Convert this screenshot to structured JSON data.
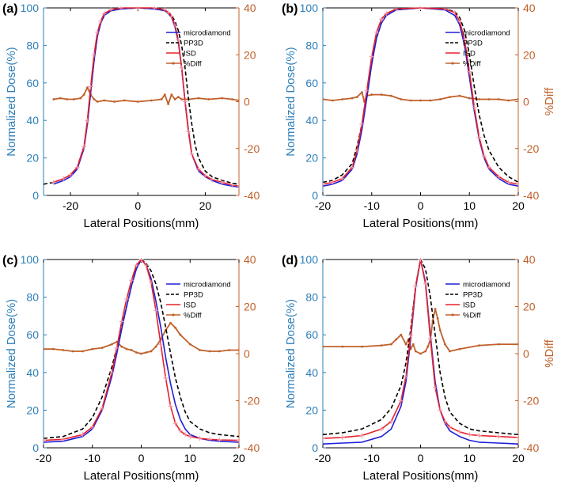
{
  "colors": {
    "left_axis": "#2E7FB8",
    "right_axis": "#C0602A",
    "microdiamond": "#1F1FD6",
    "pp3d": "#000000",
    "isd": "#E8202A",
    "diff": "#C0602A",
    "axis": "#000000"
  },
  "chart_data": [
    {
      "panel_label": "(a)",
      "type": "line",
      "xlabel": "Lateral Positions(mm)",
      "ylabel": "Normalized Dose(%)",
      "ylabel_right": "",
      "xlim": [
        -28,
        30
      ],
      "ylim": [
        0,
        100
      ],
      "ylim_right": [
        -40,
        40
      ],
      "xticks": [
        -20,
        0,
        20
      ],
      "yticks": [
        0,
        20,
        40,
        60,
        80,
        100
      ],
      "yticks_right": [
        -40,
        -20,
        0,
        20,
        40
      ],
      "legend": [
        "microdiamond",
        "PP3D",
        "ISD",
        "%Diff"
      ],
      "series": [
        {
          "name": "microdiamond",
          "axis": "left",
          "x": [
            -25,
            -22,
            -20,
            -18,
            -16,
            -15,
            -14,
            -13,
            -12,
            -11,
            -10,
            -8,
            -5,
            0,
            5,
            8,
            9,
            10,
            11,
            12,
            13,
            14,
            15,
            16,
            18,
            20,
            22,
            25,
            28,
            30
          ],
          "values": [
            6,
            8,
            10,
            14,
            25,
            38,
            55,
            72,
            85,
            92,
            96,
            98.5,
            99.5,
            100,
            99.5,
            98.5,
            97,
            95,
            90,
            82,
            68,
            50,
            35,
            22,
            13,
            10,
            8,
            6,
            5,
            4.5
          ]
        },
        {
          "name": "PP3D",
          "axis": "left",
          "x": [
            -28,
            -25,
            -22,
            -20,
            -18,
            -16,
            -15,
            -14,
            -13,
            -12,
            -11,
            -10,
            -8,
            -5,
            0,
            5,
            8,
            9,
            10,
            11,
            12,
            13,
            14,
            15,
            16,
            17,
            18,
            20,
            22,
            25,
            28,
            30
          ],
          "values": [
            6,
            7,
            9,
            11,
            15,
            26,
            38,
            55,
            72,
            85,
            92,
            96,
            98.5,
            99.5,
            100,
            99.5,
            98.5,
            97.5,
            96,
            93,
            88,
            80,
            68,
            52,
            38,
            27,
            20,
            13,
            10,
            8,
            6.5,
            6
          ]
        },
        {
          "name": "ISD",
          "axis": "left",
          "x": [
            -25,
            -22,
            -20,
            -18,
            -16,
            -15,
            -14,
            -13,
            -12,
            -11,
            -10,
            -8,
            -5,
            0,
            5,
            8,
            9,
            10,
            11,
            12,
            13,
            14,
            15,
            16,
            18,
            20,
            22,
            25,
            28,
            30
          ],
          "values": [
            7,
            9,
            11,
            15,
            26,
            40,
            58,
            75,
            87,
            93,
            97,
            99,
            100,
            100,
            100,
            99,
            97.5,
            95.5,
            91,
            83,
            68,
            50,
            34,
            22,
            14,
            10.5,
            8.5,
            7,
            5.5,
            5
          ]
        },
        {
          "name": "%Diff",
          "axis": "right",
          "x": [
            -25,
            -23,
            -21,
            -19,
            -17,
            -16,
            -15,
            -14,
            -13,
            -12,
            -10,
            -7,
            -4,
            0,
            4,
            7,
            8,
            9,
            10,
            11,
            12,
            13,
            15,
            18,
            21,
            25,
            28,
            30
          ],
          "values": [
            1,
            1.5,
            1,
            1,
            1.5,
            3,
            6,
            3,
            1,
            0,
            0.5,
            0,
            0.5,
            0,
            0.5,
            1,
            3,
            -1,
            3,
            1,
            2,
            1,
            1,
            1.5,
            1,
            1.5,
            1,
            0.5
          ]
        }
      ]
    },
    {
      "panel_label": "(b)",
      "type": "line",
      "xlabel": "Lateral Positions(mm)",
      "ylabel": "Normalized Dose(%)",
      "ylabel_right": "%Diff",
      "xlim": [
        -20,
        20
      ],
      "ylim": [
        0,
        100
      ],
      "ylim_right": [
        -40,
        40
      ],
      "xticks": [
        -20,
        -10,
        0,
        10,
        20
      ],
      "yticks": [
        0,
        20,
        40,
        60,
        80,
        100
      ],
      "yticks_right": [
        -40,
        -20,
        0,
        20,
        40
      ],
      "legend": [
        "microdiamond",
        "PP3D",
        "ISD",
        "%Diff"
      ],
      "series": [
        {
          "name": "microdiamond",
          "axis": "left",
          "x": [
            -20,
            -18,
            -16,
            -14,
            -13,
            -12,
            -11,
            -10,
            -9,
            -8,
            -7,
            -5,
            0,
            5,
            7,
            8,
            9,
            10,
            11,
            12,
            13,
            14,
            16,
            18,
            20
          ],
          "values": [
            5,
            6,
            8,
            14,
            22,
            35,
            52,
            70,
            84,
            92,
            96,
            99,
            100,
            99,
            96,
            91,
            80,
            63,
            45,
            30,
            20,
            14,
            9,
            6,
            5
          ]
        },
        {
          "name": "PP3D",
          "axis": "left",
          "x": [
            -20,
            -18,
            -16,
            -14,
            -13,
            -12,
            -11,
            -10,
            -9,
            -8,
            -7,
            -5,
            0,
            5,
            7,
            8,
            9,
            10,
            11,
            12,
            13,
            14,
            16,
            18,
            20
          ],
          "values": [
            7,
            8,
            11,
            17,
            26,
            38,
            54,
            71,
            84,
            92,
            96,
            99,
            100,
            99.5,
            98,
            95,
            88,
            75,
            58,
            43,
            32,
            24,
            15,
            10,
            7
          ]
        },
        {
          "name": "ISD",
          "axis": "left",
          "x": [
            -20,
            -18,
            -16,
            -14,
            -13,
            -12,
            -11,
            -10,
            -9,
            -8,
            -7,
            -5,
            0,
            5,
            7,
            8,
            9,
            10,
            11,
            12,
            13,
            14,
            16,
            18,
            20
          ],
          "values": [
            6,
            7,
            9,
            15,
            24,
            38,
            56,
            74,
            87,
            94,
            97,
            99.5,
            100,
            99.5,
            97.5,
            93,
            83,
            66,
            47,
            31,
            21,
            15,
            10,
            7,
            6
          ]
        },
        {
          "name": "%Diff",
          "axis": "right",
          "x": [
            -20,
            -18,
            -16,
            -14,
            -13,
            -12,
            -11.5,
            -11,
            -10,
            -8,
            -6,
            -4,
            -2,
            0,
            2,
            4,
            6,
            8,
            10,
            12,
            14,
            16,
            18,
            20
          ],
          "values": [
            1,
            0.5,
            1,
            1.5,
            2,
            4,
            0,
            2.5,
            3,
            3,
            2.5,
            1,
            0.5,
            0.5,
            0.5,
            1,
            2,
            2.5,
            1.5,
            1,
            1,
            1,
            0.5,
            1
          ]
        }
      ]
    },
    {
      "panel_label": "(c)",
      "type": "line",
      "xlabel": "Lateral Positions(mm)",
      "ylabel": "Normalized Dose(%)",
      "ylabel_right": "",
      "xlim": [
        -20,
        20
      ],
      "ylim": [
        0,
        100
      ],
      "ylim_right": [
        -40,
        40
      ],
      "xticks": [
        -20,
        -10,
        0,
        10,
        20
      ],
      "yticks": [
        0,
        20,
        40,
        60,
        80,
        100
      ],
      "yticks_right": [
        -40,
        -20,
        0,
        20,
        40
      ],
      "legend": [
        "microdiamond",
        "PP3D",
        "ISD",
        "%Diff"
      ],
      "series": [
        {
          "name": "microdiamond",
          "axis": "left",
          "x": [
            -20,
            -16,
            -12,
            -10,
            -8,
            -6,
            -5,
            -4,
            -3,
            -2,
            -1,
            0,
            1,
            2,
            3,
            4,
            5,
            6,
            7,
            8,
            9,
            10,
            12,
            14,
            16,
            20
          ],
          "values": [
            3,
            3.5,
            6,
            10,
            20,
            38,
            50,
            63,
            75,
            86,
            95,
            100,
            97,
            90,
            78,
            64,
            48,
            34,
            23,
            15,
            10,
            7,
            5,
            4,
            3.5,
            3
          ]
        },
        {
          "name": "PP3D",
          "axis": "left",
          "x": [
            -20,
            -16,
            -12,
            -10,
            -8,
            -6,
            -5,
            -4,
            -3,
            -2,
            -1,
            0,
            1,
            2,
            3,
            4,
            5,
            6,
            7,
            8,
            9,
            10,
            12,
            14,
            16,
            20
          ],
          "values": [
            5,
            6,
            10,
            16,
            27,
            43,
            53,
            64,
            75,
            86,
            95,
            100,
            98,
            94,
            87,
            77,
            64,
            50,
            37,
            27,
            19,
            14,
            10,
            8,
            7,
            6
          ]
        },
        {
          "name": "ISD",
          "axis": "left",
          "x": [
            -20,
            -16,
            -12,
            -10,
            -8,
            -6,
            -5,
            -4,
            -3,
            -2,
            -1,
            0,
            1,
            2,
            3,
            4,
            5,
            6,
            7,
            8,
            9,
            10,
            12,
            14,
            16,
            20
          ],
          "values": [
            4,
            4.5,
            7,
            11,
            21,
            40,
            53,
            67,
            79,
            89,
            97,
            100,
            97,
            88,
            73,
            55,
            37,
            22,
            13,
            9,
            7,
            6,
            5,
            4.5,
            4.2,
            4
          ]
        },
        {
          "name": "%Diff",
          "axis": "right",
          "x": [
            -20,
            -18,
            -16,
            -14,
            -12,
            -10,
            -8,
            -6,
            -5,
            -4,
            -3,
            -2,
            -1,
            0,
            1,
            2,
            3,
            4,
            5,
            6,
            7,
            8,
            10,
            12,
            14,
            16,
            18,
            20
          ],
          "values": [
            2,
            2,
            1.5,
            1,
            1,
            2,
            2.5,
            4,
            5,
            3,
            2,
            1.5,
            0.5,
            0,
            0.5,
            1,
            3,
            6,
            10,
            13,
            11,
            8,
            4,
            1.5,
            1,
            1,
            1.5,
            1.5
          ]
        }
      ]
    },
    {
      "panel_label": "(d)",
      "type": "line",
      "xlabel": "Lateral Positions(mm)",
      "ylabel": "Normalized Dose(%)",
      "ylabel_right": "%Diff",
      "xlim": [
        -20,
        20
      ],
      "ylim": [
        0,
        100
      ],
      "ylim_right": [
        -40,
        40
      ],
      "xticks": [
        -20,
        -10,
        0,
        10,
        20
      ],
      "yticks": [
        0,
        20,
        40,
        60,
        80,
        100
      ],
      "yticks_right": [
        -40,
        -20,
        0,
        20,
        40
      ],
      "legend": [
        "microdiamond",
        "PP3D",
        "ISD",
        "%Diff"
      ],
      "series": [
        {
          "name": "microdiamond",
          "axis": "left",
          "x": [
            -20,
            -16,
            -12,
            -8,
            -6,
            -4,
            -3,
            -2,
            -1,
            0,
            1,
            2,
            3,
            4,
            5,
            6,
            8,
            10,
            12,
            16,
            20
          ],
          "values": [
            2,
            2.5,
            3,
            6,
            10,
            22,
            35,
            58,
            85,
            100,
            88,
            60,
            35,
            20,
            13,
            9,
            6,
            4,
            3,
            2.5,
            2
          ]
        },
        {
          "name": "PP3D",
          "axis": "left",
          "x": [
            -20,
            -16,
            -12,
            -8,
            -6,
            -4,
            -3,
            -2,
            -1,
            0,
            1,
            2,
            3,
            4,
            5,
            6,
            8,
            10,
            12,
            16,
            20
          ],
          "values": [
            7,
            8,
            10,
            15,
            21,
            33,
            45,
            63,
            86,
            100,
            95,
            80,
            60,
            40,
            27,
            19,
            13,
            10,
            9,
            8,
            7
          ]
        },
        {
          "name": "ISD",
          "axis": "left",
          "x": [
            -20,
            -16,
            -12,
            -8,
            -6,
            -4,
            -3,
            -2,
            -1,
            0,
            1,
            2,
            3,
            4,
            5,
            6,
            8,
            10,
            12,
            16,
            20
          ],
          "values": [
            5,
            5.5,
            6.5,
            10,
            14,
            25,
            38,
            60,
            86,
            100,
            87,
            58,
            32,
            20,
            14,
            11,
            8.5,
            7,
            6.5,
            6,
            5.5
          ]
        },
        {
          "name": "%Diff",
          "axis": "right",
          "x": [
            -20,
            -16,
            -12,
            -8,
            -6,
            -5,
            -4,
            -3,
            -2.5,
            -2,
            -1.5,
            -1,
            0,
            1,
            1.5,
            2,
            2.5,
            3,
            3.5,
            4,
            5,
            6,
            8,
            12,
            16,
            20
          ],
          "values": [
            3,
            3,
            3,
            3.5,
            4,
            6,
            8,
            4,
            6,
            2,
            4,
            1,
            0,
            1,
            3,
            6,
            14,
            19,
            15,
            10,
            4,
            1,
            2,
            3.5,
            4,
            4
          ]
        }
      ]
    }
  ]
}
